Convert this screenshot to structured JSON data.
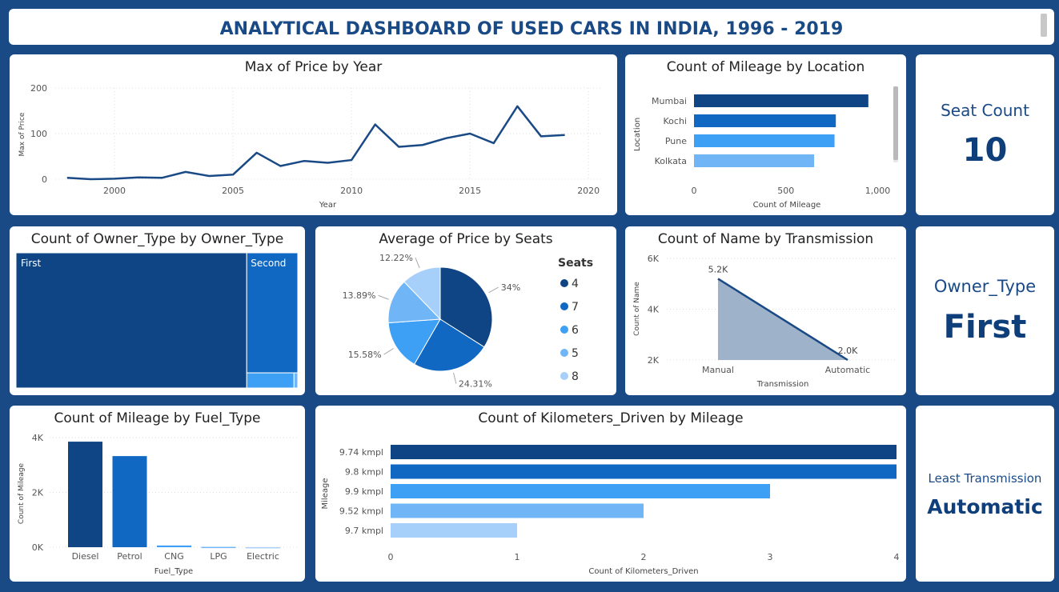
{
  "header": {
    "title": "ANALYTICAL DASHBOARD OF USED CARS IN INDIA, 1996 - 2019"
  },
  "colors": {
    "dark": "#0f4584",
    "mid": "#1068c3",
    "light": "#3ea0f5",
    "lighter": "#70b6f6",
    "lightest": "#a6d0fa",
    "navy": "#1a4a86"
  },
  "kpis": {
    "seat": {
      "label": "Seat Count",
      "value": "10"
    },
    "owner": {
      "label": "Owner_Type",
      "value": "First"
    },
    "transmission": {
      "label": "Least Transmission",
      "value": "Automatic"
    }
  },
  "chart_data": [
    {
      "id": "price_by_year",
      "type": "line",
      "title": "Max of Price by Year",
      "xlabel": "Year",
      "ylabel": "Max of Price",
      "xlim": [
        1997.5,
        2020.5
      ],
      "ylim": [
        0,
        200
      ],
      "xticks": [
        2000,
        2005,
        2010,
        2015,
        2020
      ],
      "yticks": [
        0,
        100,
        200
      ],
      "grid": true,
      "x": [
        1998,
        1999,
        2000,
        2001,
        2002,
        2003,
        2004,
        2005,
        2006,
        2007,
        2008,
        2009,
        2010,
        2011,
        2012,
        2013,
        2014,
        2015,
        2016,
        2017,
        2018,
        2019
      ],
      "y": [
        3,
        0,
        1,
        4,
        3,
        16,
        7,
        10,
        58,
        29,
        40,
        36,
        42,
        120,
        71,
        75,
        90,
        100,
        79,
        160,
        94,
        97
      ]
    },
    {
      "id": "mileage_by_location",
      "type": "bar",
      "orientation": "horizontal",
      "title": "Count of Mileage by Location",
      "xlabel": "Count of Mileage",
      "ylabel": "Location",
      "categories": [
        "Mumbai",
        "Kochi",
        "Pune",
        "Kolkata"
      ],
      "values": [
        949,
        772,
        765,
        654
      ],
      "xlim": [
        0,
        1050
      ],
      "xticks": [
        0,
        500,
        1000
      ],
      "xtick_labels": [
        "0",
        "500",
        "1,000"
      ]
    },
    {
      "id": "owner_treemap",
      "type": "treemap",
      "title": "Count of Owner_Type by Owner_Type",
      "categories": [
        "First",
        "Second",
        "Third",
        "Fourth & Above"
      ],
      "values": [
        4929,
        968,
        113,
        9
      ],
      "labels_shown": [
        "First",
        "Second",
        "",
        ""
      ]
    },
    {
      "id": "price_by_seats",
      "type": "pie",
      "title": "Average of Price by Seats",
      "legend_title": "Seats",
      "legend_position": "right",
      "categories": [
        "4",
        "7",
        "6",
        "5",
        "8"
      ],
      "values": [
        34,
        24.31,
        15.58,
        13.89,
        12.22
      ],
      "labels": [
        "34%",
        "24.31%",
        "15.58%",
        "13.89%",
        "12.22%"
      ]
    },
    {
      "id": "name_by_transmission",
      "type": "area",
      "title": "Count of Name by Transmission",
      "xlabel": "Transmission",
      "ylabel": "Count of Name",
      "categories": [
        "Manual",
        "Automatic"
      ],
      "values": [
        5200,
        2000
      ],
      "data_labels": [
        "5.2K",
        "2.0K"
      ],
      "ylim": [
        2000,
        6000
      ],
      "yticks": [
        2000,
        4000,
        6000
      ],
      "ytick_labels": [
        "2K",
        "4K",
        "6K"
      ]
    },
    {
      "id": "mileage_by_fuel",
      "type": "bar",
      "orientation": "vertical",
      "title": "Count of Mileage by Fuel_Type",
      "xlabel": "Fuel_Type",
      "ylabel": "Count of Mileage",
      "categories": [
        "Diesel",
        "Petrol",
        "CNG",
        "LPG",
        "Electric"
      ],
      "values": [
        3852,
        3325,
        62,
        12,
        2
      ],
      "ylim": [
        0,
        4000
      ],
      "yticks": [
        0,
        2000,
        4000
      ],
      "ytick_labels": [
        "0K",
        "2K",
        "4K"
      ]
    },
    {
      "id": "km_by_mileage",
      "type": "bar",
      "orientation": "horizontal",
      "title": "Count of Kilometers_Driven by Mileage",
      "xlabel": "Count of Kilometers_Driven",
      "ylabel": "Mileage",
      "categories": [
        "9.74 kmpl",
        "9.8 kmpl",
        "9.9 kmpl",
        "9.52 kmpl",
        "9.7 kmpl"
      ],
      "values": [
        4,
        4,
        3,
        2,
        1
      ],
      "xlim": [
        0,
        4
      ],
      "xticks": [
        0,
        1,
        2,
        3,
        4
      ]
    }
  ]
}
